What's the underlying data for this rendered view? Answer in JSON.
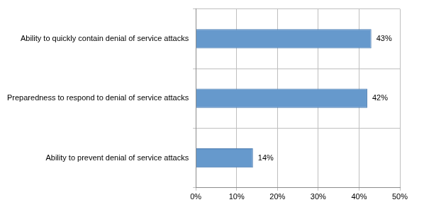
{
  "chart_data": {
    "type": "bar",
    "orientation": "horizontal",
    "categories": [
      "Ability to quickly contain denial of service attacks",
      "Preparedness to respond to denial of service attacks",
      "Ability to prevent denial of service attacks"
    ],
    "values": [
      43,
      42,
      14
    ],
    "value_labels": [
      "43%",
      "42%",
      "14%"
    ],
    "color": "#6699cc",
    "xlim": [
      0,
      50
    ],
    "xticks": [
      {
        "value": 0,
        "label": "0%"
      },
      {
        "value": 10,
        "label": "10%"
      },
      {
        "value": 20,
        "label": "20%"
      },
      {
        "value": 30,
        "label": "30%"
      },
      {
        "value": 40,
        "label": "40%"
      },
      {
        "value": 50,
        "label": "50%"
      }
    ],
    "grid": true,
    "data_labels": true
  }
}
